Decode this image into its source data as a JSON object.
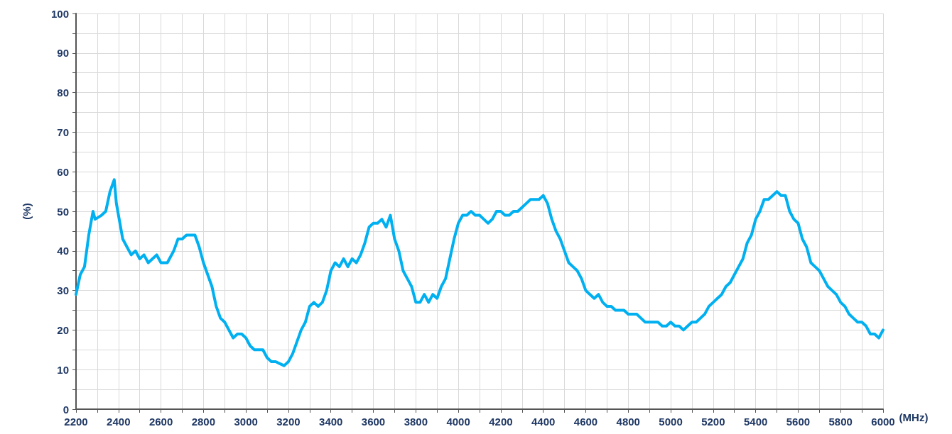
{
  "chart_data": {
    "type": "line",
    "xlabel": "(MHz)",
    "ylabel": "(%)",
    "grid": true,
    "marker": "none",
    "line_style": "solid",
    "xlim": [
      2200,
      6000
    ],
    "ylim": [
      0,
      100
    ],
    "xticks": [
      2200,
      {
        "value": 2300,
        "label": null
      },
      2400,
      {
        "value": 2500,
        "label": null
      },
      2600,
      {
        "value": 2700,
        "label": null
      },
      2800,
      {
        "value": 2900,
        "label": null
      },
      3000,
      {
        "value": 3100,
        "label": null
      },
      3200,
      {
        "value": 3300,
        "label": null
      },
      3400,
      {
        "value": 3500,
        "label": null
      },
      3600,
      {
        "value": 3700,
        "label": null
      },
      3800,
      {
        "value": 3900,
        "label": null
      },
      4000,
      {
        "value": 4100,
        "label": null
      },
      4200,
      {
        "value": 4300,
        "label": null
      },
      4400,
      {
        "value": 4500,
        "label": null
      },
      4600,
      {
        "value": 4700,
        "label": null
      },
      4800,
      {
        "value": 4900,
        "label": null
      },
      5000,
      {
        "value": 5100,
        "label": null
      },
      5200,
      {
        "value": 5300,
        "label": null
      },
      5400,
      {
        "value": 5500,
        "label": null
      },
      5600,
      {
        "value": 5700,
        "label": null
      },
      5800,
      {
        "value": 5900,
        "label": null
      },
      6000
    ],
    "yticks": [
      0,
      {
        "value": 5,
        "label": null
      },
      10,
      {
        "value": 15,
        "label": null
      },
      20,
      {
        "value": 25,
        "label": null
      },
      30,
      {
        "value": 35,
        "label": null
      },
      40,
      {
        "value": 45,
        "label": null
      },
      50,
      {
        "value": 55,
        "label": null
      },
      60,
      {
        "value": 65,
        "label": null
      },
      70,
      {
        "value": 75,
        "label": null
      },
      80,
      {
        "value": 85,
        "label": null
      },
      90,
      {
        "value": 95,
        "label": null
      },
      100
    ],
    "x": [
      2200,
      2220,
      2240,
      2260,
      2280,
      2290,
      2320,
      2340,
      2360,
      2380,
      2390,
      2420,
      2440,
      2460,
      2480,
      2500,
      2520,
      2540,
      2560,
      2580,
      2600,
      2630,
      2660,
      2680,
      2700,
      2720,
      2740,
      2760,
      2780,
      2800,
      2820,
      2840,
      2860,
      2880,
      2900,
      2920,
      2940,
      2960,
      2980,
      3000,
      3020,
      3040,
      3060,
      3080,
      3100,
      3120,
      3140,
      3160,
      3180,
      3200,
      3220,
      3240,
      3260,
      3280,
      3300,
      3320,
      3340,
      3360,
      3380,
      3400,
      3420,
      3440,
      3460,
      3480,
      3500,
      3520,
      3540,
      3560,
      3580,
      3600,
      3620,
      3640,
      3660,
      3680,
      3700,
      3720,
      3740,
      3760,
      3780,
      3800,
      3820,
      3840,
      3860,
      3880,
      3900,
      3920,
      3940,
      3960,
      3980,
      4000,
      4020,
      4040,
      4060,
      4080,
      4100,
      4120,
      4140,
      4160,
      4180,
      4200,
      4220,
      4240,
      4260,
      4280,
      4300,
      4320,
      4340,
      4360,
      4380,
      4400,
      4420,
      4440,
      4460,
      4480,
      4500,
      4520,
      4540,
      4560,
      4580,
      4600,
      4620,
      4640,
      4660,
      4680,
      4700,
      4720,
      4740,
      4760,
      4780,
      4800,
      4820,
      4840,
      4860,
      4880,
      4900,
      4920,
      4940,
      4960,
      4980,
      5000,
      5020,
      5040,
      5060,
      5080,
      5100,
      5120,
      5140,
      5160,
      5180,
      5200,
      5220,
      5240,
      5260,
      5280,
      5300,
      5320,
      5340,
      5360,
      5380,
      5400,
      5420,
      5440,
      5460,
      5480,
      5500,
      5520,
      5540,
      5560,
      5580,
      5600,
      5620,
      5640,
      5660,
      5680,
      5700,
      5720,
      5740,
      5760,
      5780,
      5800,
      5820,
      5840,
      5860,
      5880,
      5900,
      5920,
      5940,
      5960,
      5980,
      6000
    ],
    "series": [
      {
        "color": "#00b0f0",
        "values": [
          29,
          34,
          36,
          44,
          50,
          48,
          49,
          50,
          55,
          58,
          52,
          43,
          41,
          39,
          40,
          38,
          39,
          37,
          38,
          39,
          37,
          37,
          40,
          43,
          43,
          44,
          44,
          44,
          41,
          37,
          34,
          31,
          26,
          23,
          22,
          20,
          18,
          19,
          19,
          18,
          16,
          15,
          15,
          15,
          13,
          12,
          12,
          11.5,
          11,
          12,
          14,
          17,
          20,
          22,
          26,
          27,
          26,
          27,
          30,
          35,
          37,
          36,
          38,
          36,
          38,
          37,
          39,
          42,
          46,
          47,
          47,
          48,
          46,
          49,
          43,
          40,
          35,
          33,
          31,
          27,
          27,
          29,
          27,
          29,
          28,
          31,
          33,
          38,
          43,
          47,
          49,
          49,
          50,
          49,
          49,
          48,
          47,
          48,
          50,
          50,
          49,
          49,
          50,
          50,
          51,
          52,
          53,
          53,
          53,
          54,
          52,
          48,
          45,
          43,
          40,
          37,
          36,
          35,
          33,
          30,
          29,
          28,
          29,
          27,
          26,
          26,
          25,
          25,
          25,
          24,
          24,
          24,
          23,
          22,
          22,
          22,
          22,
          21,
          21,
          22,
          21,
          21,
          20,
          21,
          22,
          22,
          23,
          24,
          26,
          27,
          28,
          29,
          31,
          32,
          34,
          36,
          38,
          42,
          44,
          48,
          50,
          53,
          53,
          54,
          55,
          54,
          54,
          50,
          48,
          47,
          43,
          41,
          37,
          36,
          35,
          33,
          31,
          30,
          29,
          27,
          26,
          24,
          23,
          22,
          22,
          21,
          19,
          19,
          18,
          20
        ]
      }
    ]
  }
}
